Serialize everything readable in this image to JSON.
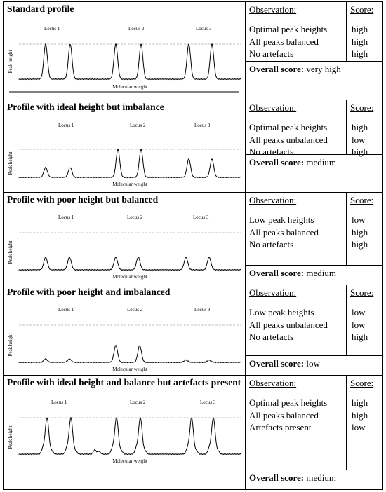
{
  "headers": {
    "observation": "Observation:",
    "score": "Score:"
  },
  "overall_label": "Overall score:",
  "plot_labels": {
    "ylabel": "Peak height",
    "xlabel": "Molecular weight",
    "loci": [
      "Locus 1",
      "Locus 2",
      "Locus 3"
    ]
  },
  "rows": [
    {
      "title": "Standard profile",
      "observations": [
        "Optimal peak heights",
        "All peaks balanced",
        "No artefacts"
      ],
      "scores": [
        "high",
        "high",
        "high"
      ],
      "overall": "very high"
    },
    {
      "title": "Profile with ideal height but imbalance",
      "observations": [
        "Optimal peak heights",
        "All peaks unbalanced",
        "No artefacts"
      ],
      "scores": [
        "high",
        "low",
        "high"
      ],
      "overall": "medium"
    },
    {
      "title": "Profile with poor height but balanced",
      "observations": [
        "Low peak heights",
        "All peaks balanced",
        "No artefacts"
      ],
      "scores": [
        "low",
        "high",
        "high"
      ],
      "overall": "medium"
    },
    {
      "title": "Profile with poor height and imbalanced",
      "observations": [
        "Low peak heights",
        "All peaks unbalanced",
        "No artefacts"
      ],
      "scores": [
        "low",
        "low",
        "high"
      ],
      "overall": "low"
    },
    {
      "title": "Profile with ideal height and balance but artefacts present",
      "observations": [
        "Optimal peak heights",
        "All peaks balanced",
        "Artefacts present"
      ],
      "scores": [
        "high",
        "high",
        "low"
      ],
      "overall": "medium"
    }
  ],
  "chart_data": [
    {
      "type": "line",
      "peak_heights": [
        1,
        1,
        1,
        1,
        1,
        1
      ],
      "artefacts": false
    },
    {
      "type": "line",
      "peak_heights": [
        0.35,
        0.35,
        1,
        1,
        0.65,
        0.65
      ],
      "artefacts": false
    },
    {
      "type": "line",
      "peak_heights": [
        0.45,
        0.45,
        0.45,
        0.45,
        0.45,
        0.45
      ],
      "artefacts": false
    },
    {
      "type": "line",
      "peak_heights": [
        0.12,
        0.12,
        0.6,
        0.6,
        0.08,
        0.08
      ],
      "artefacts": false
    },
    {
      "type": "line",
      "peak_heights": [
        1,
        1,
        1,
        1,
        1,
        1
      ],
      "artefacts": true
    }
  ]
}
